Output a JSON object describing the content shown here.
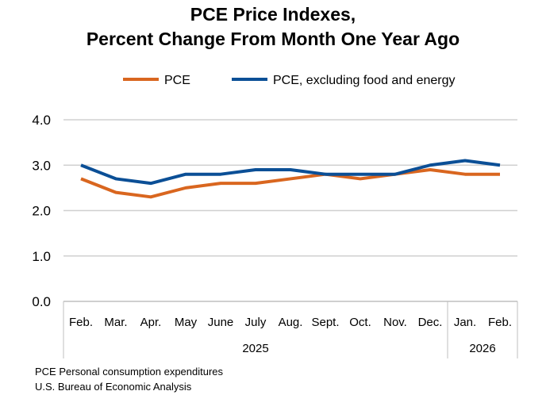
{
  "chart_data": {
    "type": "line",
    "title": [
      "PCE Price Indexes,",
      "Percent Change From Month One Year Ago"
    ],
    "categories": [
      "Feb.",
      "Mar.",
      "Apr.",
      "May",
      "June",
      "July",
      "Aug.",
      "Sept.",
      "Oct.",
      "Nov.",
      "Dec.",
      "Jan.",
      "Feb."
    ],
    "year_groups": [
      {
        "label": "2025",
        "count": 11
      },
      {
        "label": "2026",
        "count": 2
      }
    ],
    "series": [
      {
        "name": "PCE",
        "color": "#D9661F",
        "values": [
          2.7,
          2.4,
          2.3,
          2.5,
          2.6,
          2.6,
          2.7,
          2.8,
          2.7,
          2.8,
          2.9,
          2.8,
          2.8
        ]
      },
      {
        "name": "PCE, excluding food and energy",
        "color": "#0B4F96",
        "values": [
          3.0,
          2.7,
          2.6,
          2.8,
          2.8,
          2.9,
          2.9,
          2.8,
          2.8,
          2.8,
          3.0,
          3.1,
          3.0
        ]
      }
    ],
    "ylim": [
      0,
      4
    ],
    "yticks": [
      "0.0",
      "1.0",
      "2.0",
      "3.0",
      "4.0"
    ],
    "grid": true,
    "legend": "top"
  },
  "notes": [
    "PCE Personal consumption expenditures",
    "U.S. Bureau of Economic Analysis"
  ]
}
